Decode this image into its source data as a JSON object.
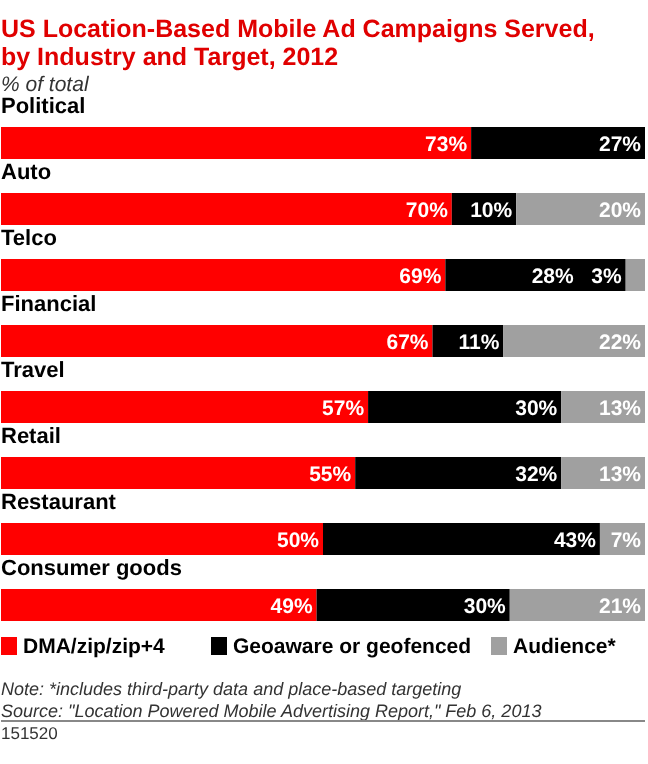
{
  "chart_data": {
    "type": "bar",
    "orientation": "horizontal",
    "stacked": true,
    "title": "US Location-Based Mobile Ad Campaigns Served, by Industry and Target, 2012",
    "subtitle": "% of total",
    "categories": [
      "Political",
      "Auto",
      "Telco",
      "Financial",
      "Travel",
      "Retail",
      "Restaurant",
      "Consumer goods"
    ],
    "xlim": [
      0,
      100
    ],
    "tick_labels": false,
    "legend": "bottom",
    "series": [
      {
        "name": "DMA/zip/zip+4",
        "color": "#ff0000",
        "values": [
          73,
          70,
          69,
          67,
          57,
          55,
          50,
          49
        ],
        "value_labels": [
          "73%",
          "70%",
          "69%",
          "67%",
          "57%",
          "55%",
          "50%",
          "49%"
        ]
      },
      {
        "name": "Geoaware or geofenced",
        "color": "#000000",
        "values": [
          27,
          10,
          28,
          11,
          30,
          32,
          43,
          30
        ],
        "value_labels": [
          "27%",
          "10%",
          "28%",
          "11%",
          "30%",
          "32%",
          "43%",
          "30%"
        ]
      },
      {
        "name": "Audience*",
        "color": "#a0a0a0",
        "values": [
          null,
          20,
          3,
          22,
          13,
          13,
          7,
          21
        ],
        "value_labels": [
          null,
          "20%",
          "3%",
          "22%",
          "13%",
          "13%",
          "7%",
          "21%"
        ]
      }
    ],
    "annotations": [
      "Note: *includes third-party data and place-based targeting",
      "Source: \"Location Powered Mobile Advertising Report,\" Feb 6, 2013",
      "151520"
    ]
  }
}
